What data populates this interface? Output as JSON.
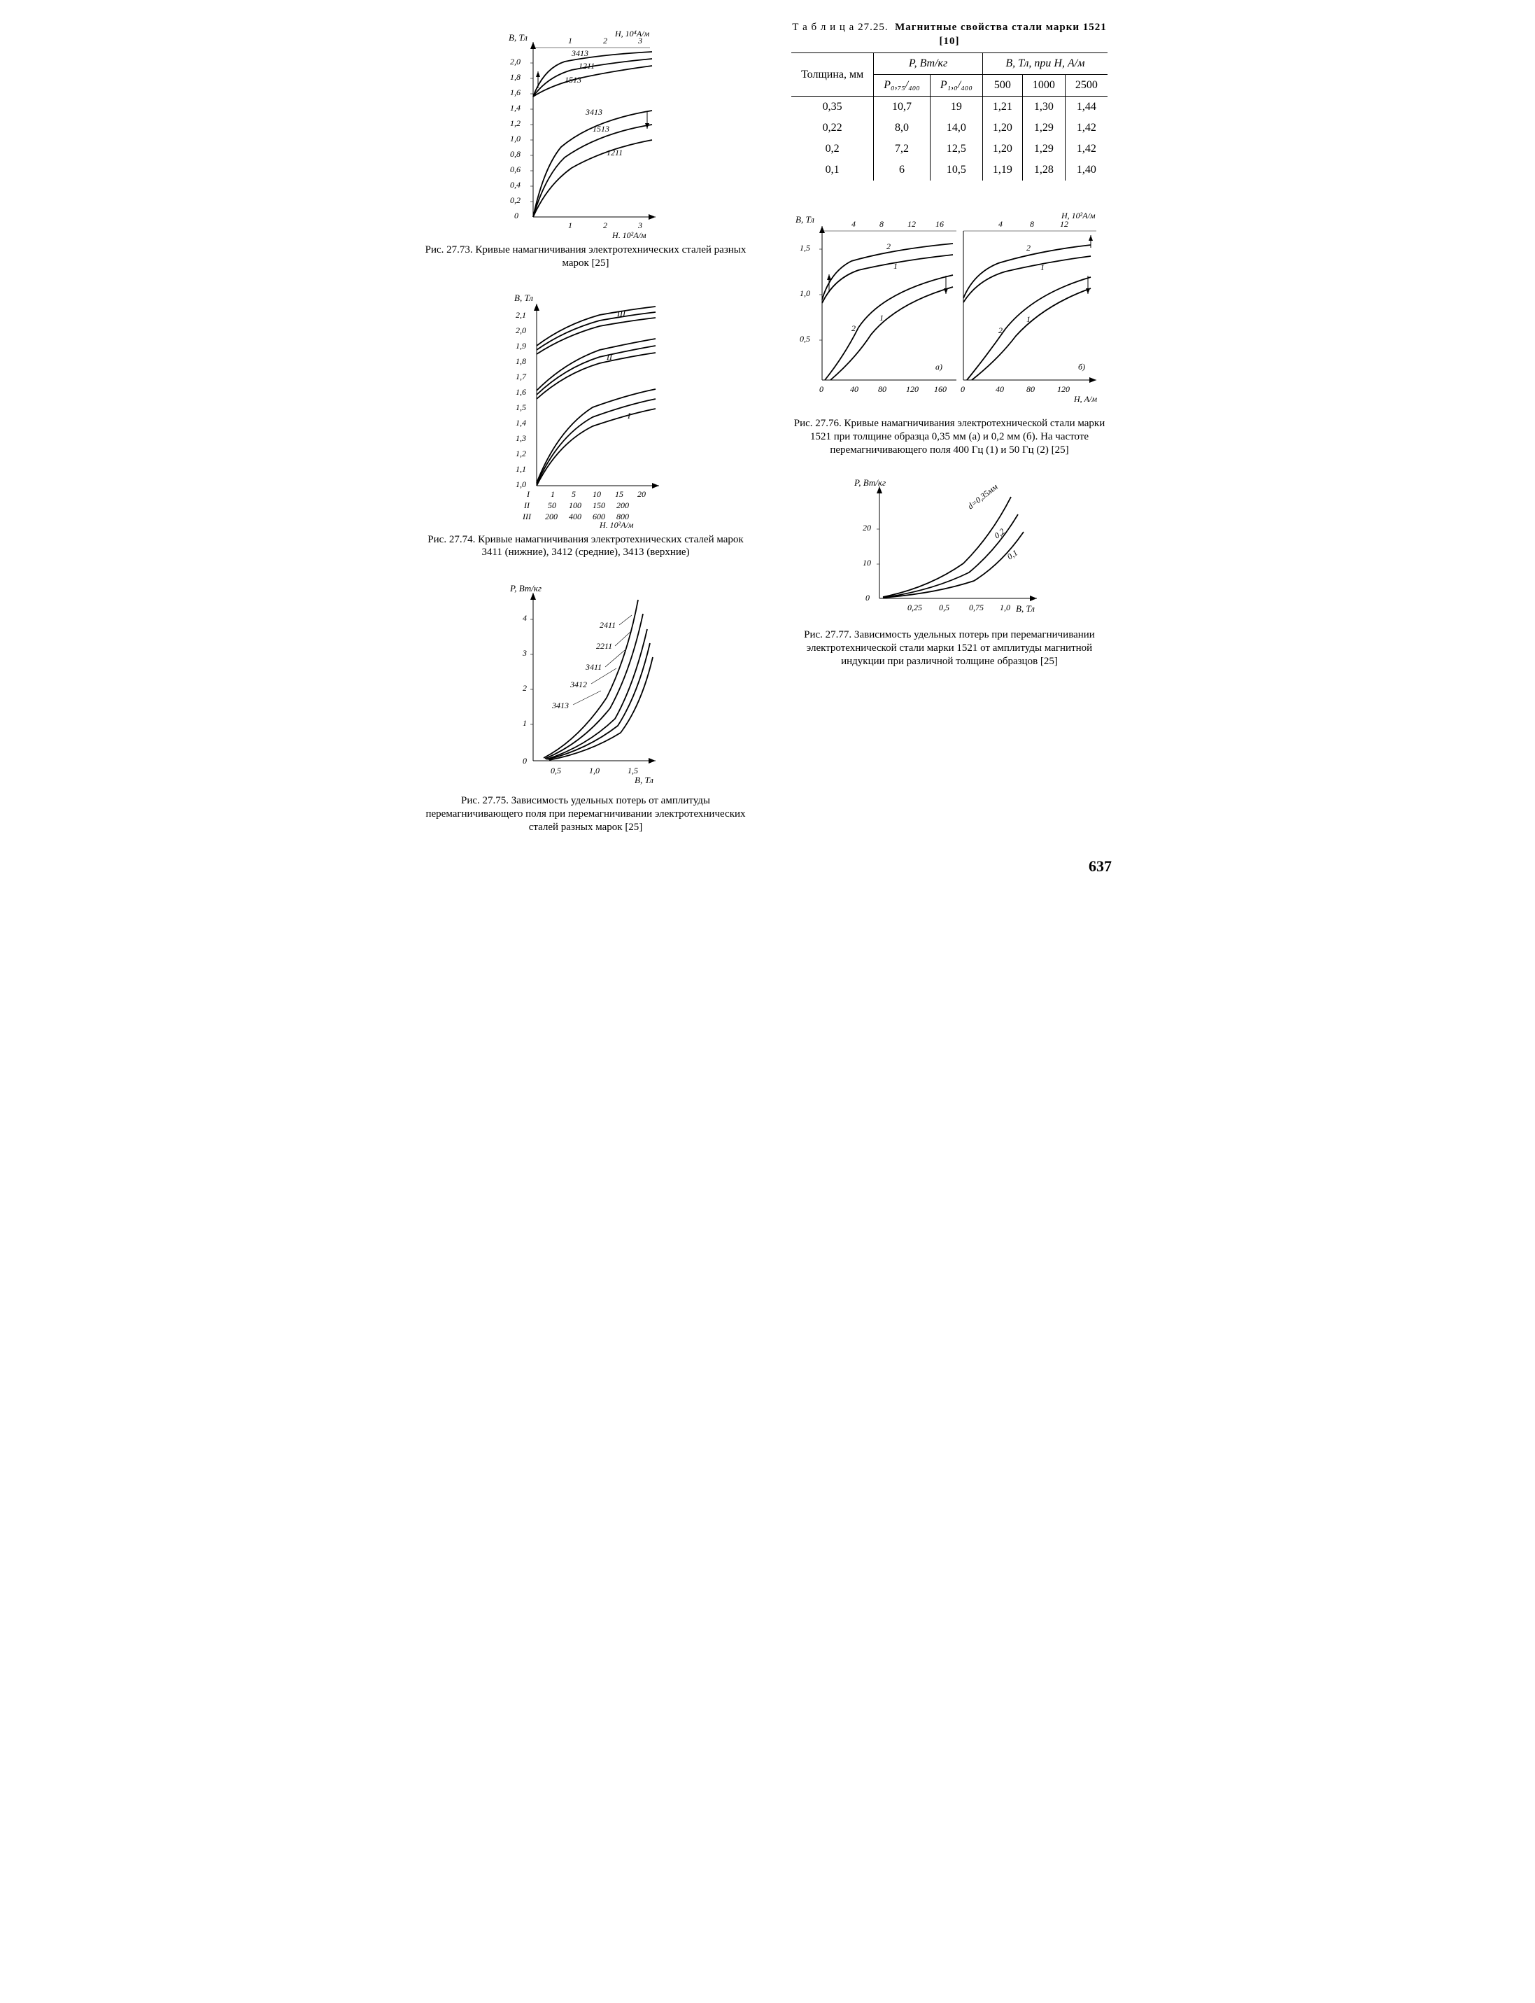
{
  "page_number": "637",
  "table": {
    "title_a": "Т а б л и ц а  27.25.",
    "title_b": "Магнитные свойства стали марки 1521 [10]",
    "row_header": "Толщина, мм",
    "group1": "P, Вт/кг",
    "group2": "B, Тл, при H, А/м",
    "sub": [
      "P₀,₇₅/₄₀₀",
      "P₁,₀/₄₀₀",
      "500",
      "1000",
      "2500"
    ],
    "rows": [
      [
        "0,35",
        "10,7",
        "19",
        "1,21",
        "1,30",
        "1,44"
      ],
      [
        "0,22",
        "8,0",
        "14,0",
        "1,20",
        "1,29",
        "1,42"
      ],
      [
        "0,2",
        "7,2",
        "12,5",
        "1,20",
        "1,29",
        "1,42"
      ],
      [
        "0,1",
        "6",
        "10,5",
        "1,19",
        "1,28",
        "1,40"
      ]
    ]
  },
  "fig73": {
    "caption": "Рис. 27.73. Кривые намагничивания электротехнических сталей разных марок [25]",
    "y_axis": "B, Тл",
    "x_top": "H, 10⁴А/м",
    "x_bot": "H, 10²А/м",
    "top_ticks": [
      "1",
      "2",
      "3"
    ],
    "y_ticks": [
      "0",
      "0,2",
      "0,4",
      "0,6",
      "0,8",
      "1,0",
      "1,2",
      "1,4",
      "1,6",
      "1,8",
      "2,0"
    ],
    "x_ticks": [
      "0",
      "1",
      "2",
      "3"
    ],
    "series_labels": [
      "3413",
      "1211",
      "1513",
      "3413",
      "1513",
      "1211"
    ]
  },
  "fig74": {
    "caption": "Рис. 27.74. Кривые намагничивания электротехнических сталей марок 3411 (нижние), 3412 (средние), 3413 (верхние)",
    "y_axis": "B, Тл",
    "x_axis": "H, 10²А/м",
    "y_ticks": [
      "1,0",
      "1,1",
      "1,2",
      "1,3",
      "1,4",
      "1,5",
      "1,6",
      "1,7",
      "1,8",
      "1,9",
      "2,0",
      "2,1"
    ],
    "row_I": [
      "I",
      "1",
      "5",
      "10",
      "15",
      "20"
    ],
    "row_II": [
      "II",
      "50",
      "100",
      "150",
      "200"
    ],
    "row_III": [
      "III",
      "200",
      "400",
      "600",
      "800"
    ],
    "group_labels": [
      "I",
      "II",
      "III"
    ]
  },
  "fig75": {
    "caption": "Рис. 27.75. Зависимость удельных потерь от амплитуды перемагничивающего поля при перемагничивании электротехнических сталей разных марок [25]",
    "y_axis": "P, Вт/кг",
    "x_axis": "B, Тл",
    "y_ticks": [
      "0",
      "1",
      "2",
      "3",
      "4"
    ],
    "x_ticks": [
      "0,5",
      "1,0",
      "1,5"
    ],
    "series_labels": [
      "2411",
      "2211",
      "3411",
      "3412",
      "3413"
    ]
  },
  "fig76": {
    "caption": "Рис. 27.76. Кривые намагничивания электротехнической стали марки 1521 при толщине образца 0,35 мм (а) и 0,2 мм (б). На частоте перемагничивающего поля 400 Гц (1) и 50 Гц (2) [25]",
    "y_axis": "B, Тл",
    "x_top": "H, 10²А/м",
    "x_bot": "H, А/м",
    "y_ticks": [
      "0,5",
      "1,0",
      "1,5"
    ],
    "top_ticks_a": [
      "4",
      "8",
      "12",
      "16"
    ],
    "top_ticks_b": [
      "4",
      "8",
      "12"
    ],
    "bot_ticks_a": [
      "0",
      "40",
      "80",
      "120",
      "160"
    ],
    "bot_ticks_b": [
      "0",
      "40",
      "80",
      "120"
    ],
    "panel_a": "а)",
    "panel_b": "б)",
    "curve_lbls": [
      "1",
      "2"
    ]
  },
  "fig77": {
    "caption": "Рис. 27.77. Зависимость удельных потерь при перемагничивании электротехнической стали марки 1521 от амплитуды магнитной индукции при различной толщине образцов [25]",
    "y_axis": "P, Вт/кг",
    "x_axis": "B, Тл",
    "y_ticks": [
      "0",
      "10",
      "20"
    ],
    "x_ticks": [
      "0",
      "0,25",
      "0,5",
      "0,75",
      "1,0"
    ],
    "series_labels": [
      "d=0,35мм",
      "0,2",
      "0,1"
    ]
  }
}
